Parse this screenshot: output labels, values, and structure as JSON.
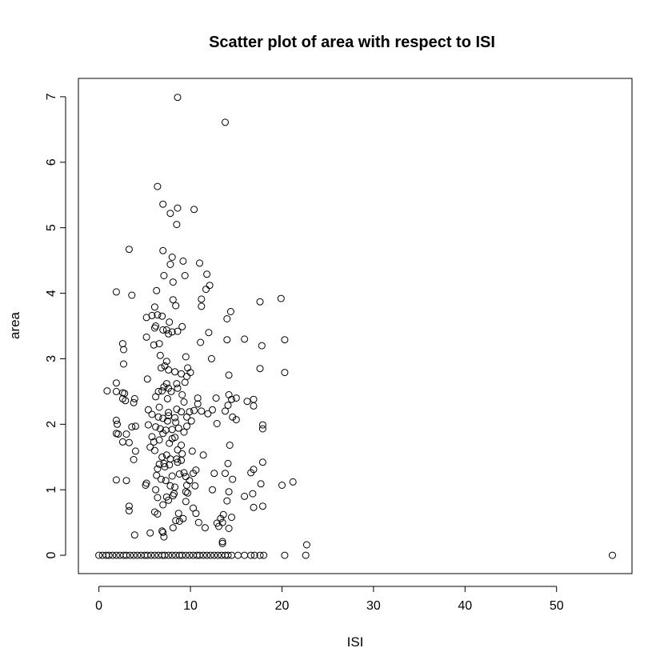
{
  "chart_data": {
    "type": "scatter",
    "title": "Scatter plot of area with respect to ISI",
    "xlabel": "ISI",
    "ylabel": "area",
    "xlim": [
      -2.24,
      58.24
    ],
    "ylim": [
      -0.28,
      7.28
    ],
    "xticks": [
      0,
      10,
      20,
      30,
      40,
      50
    ],
    "yticks": [
      0,
      1,
      2,
      3,
      4,
      5,
      6,
      7
    ],
    "grid": false,
    "series": [
      {
        "marker": "open-circle",
        "points": [
          [
            8.6,
            6.99
          ],
          [
            13.8,
            6.61
          ],
          [
            6.4,
            5.63
          ],
          [
            7.0,
            5.36
          ],
          [
            7.8,
            5.22
          ],
          [
            8.6,
            5.3
          ],
          [
            10.4,
            5.28
          ],
          [
            8.5,
            5.05
          ],
          [
            3.3,
            4.67
          ],
          [
            7.0,
            4.65
          ],
          [
            8.0,
            4.55
          ],
          [
            11.0,
            4.46
          ],
          [
            7.8,
            4.44
          ],
          [
            9.2,
            4.49
          ],
          [
            7.1,
            4.27
          ],
          [
            9.4,
            4.27
          ],
          [
            8.1,
            4.17
          ],
          [
            11.8,
            4.29
          ],
          [
            12.1,
            4.12
          ],
          [
            11.7,
            4.06
          ],
          [
            1.9,
            4.02
          ],
          [
            6.3,
            4.04
          ],
          [
            3.6,
            3.97
          ],
          [
            11.2,
            3.91
          ],
          [
            8.1,
            3.9
          ],
          [
            14.4,
            3.72
          ],
          [
            17.6,
            3.87
          ],
          [
            19.9,
            3.92
          ],
          [
            6.1,
            3.79
          ],
          [
            8.4,
            3.81
          ],
          [
            11.2,
            3.8
          ],
          [
            5.8,
            3.66
          ],
          [
            6.4,
            3.67
          ],
          [
            6.9,
            3.65
          ],
          [
            5.2,
            3.63
          ],
          [
            14.0,
            3.61
          ],
          [
            6.2,
            3.5
          ],
          [
            7.7,
            3.56
          ],
          [
            9.1,
            3.49
          ],
          [
            6.1,
            3.47
          ],
          [
            7.0,
            3.44
          ],
          [
            7.4,
            3.44
          ],
          [
            7.6,
            3.38
          ],
          [
            8.0,
            3.41
          ],
          [
            8.6,
            3.42
          ],
          [
            5.2,
            3.33
          ],
          [
            11.1,
            3.25
          ],
          [
            12.0,
            3.4
          ],
          [
            14.0,
            3.29
          ],
          [
            15.9,
            3.3
          ],
          [
            20.3,
            3.29
          ],
          [
            2.6,
            3.23
          ],
          [
            6.0,
            3.21
          ],
          [
            6.6,
            3.23
          ],
          [
            17.8,
            3.2
          ],
          [
            2.7,
            3.14
          ],
          [
            6.7,
            3.05
          ],
          [
            9.5,
            3.03
          ],
          [
            12.3,
            3.0
          ],
          [
            7.4,
            2.96
          ],
          [
            2.7,
            2.92
          ],
          [
            7.2,
            2.89
          ],
          [
            7.6,
            2.83
          ],
          [
            6.8,
            2.86
          ],
          [
            9.7,
            2.86
          ],
          [
            17.6,
            2.85
          ],
          [
            8.3,
            2.8
          ],
          [
            9.0,
            2.77
          ],
          [
            10.0,
            2.79
          ],
          [
            20.3,
            2.79
          ],
          [
            9.6,
            2.73
          ],
          [
            14.2,
            2.75
          ],
          [
            5.3,
            2.69
          ],
          [
            1.9,
            2.63
          ],
          [
            7.4,
            2.62
          ],
          [
            8.5,
            2.62
          ],
          [
            9.4,
            2.64
          ],
          [
            7.1,
            2.57
          ],
          [
            6.9,
            2.51
          ],
          [
            7.6,
            2.55
          ],
          [
            8.6,
            2.55
          ],
          [
            7.9,
            2.5
          ],
          [
            0.9,
            2.51
          ],
          [
            1.9,
            2.5
          ],
          [
            2.6,
            2.48
          ],
          [
            2.8,
            2.47
          ],
          [
            6.5,
            2.5
          ],
          [
            9.1,
            2.45
          ],
          [
            2.6,
            2.39
          ],
          [
            3.9,
            2.39
          ],
          [
            6.2,
            2.42
          ],
          [
            10.8,
            2.4
          ],
          [
            12.8,
            2.4
          ],
          [
            14.2,
            2.45
          ],
          [
            14.5,
            2.38
          ],
          [
            15.0,
            2.4
          ],
          [
            7.5,
            2.39
          ],
          [
            16.9,
            2.38
          ],
          [
            2.9,
            2.36
          ],
          [
            3.8,
            2.33
          ],
          [
            9.3,
            2.34
          ],
          [
            10.8,
            2.31
          ],
          [
            16.2,
            2.35
          ],
          [
            14.1,
            2.29
          ],
          [
            16.9,
            2.28
          ],
          [
            5.4,
            2.22
          ],
          [
            6.6,
            2.26
          ],
          [
            8.5,
            2.23
          ],
          [
            11.2,
            2.2
          ],
          [
            12.4,
            2.22
          ],
          [
            13.8,
            2.2
          ],
          [
            7.6,
            2.18
          ],
          [
            9.0,
            2.19
          ],
          [
            9.9,
            2.19
          ],
          [
            10.4,
            2.21
          ],
          [
            5.8,
            2.15
          ],
          [
            6.5,
            2.11
          ],
          [
            7.6,
            2.13
          ],
          [
            8.3,
            2.1
          ],
          [
            7.0,
            2.09
          ],
          [
            9.6,
            2.11
          ],
          [
            11.9,
            2.16
          ],
          [
            14.6,
            2.11
          ],
          [
            1.9,
            2.06
          ],
          [
            5.4,
            1.99
          ],
          [
            7.5,
            2.05
          ],
          [
            8.4,
            2.03
          ],
          [
            10.1,
            2.05
          ],
          [
            12.9,
            2.01
          ],
          [
            15.0,
            2.07
          ],
          [
            17.9,
            1.99
          ],
          [
            2.0,
            2.0
          ],
          [
            3.6,
            1.96
          ],
          [
            4.0,
            1.97
          ],
          [
            6.2,
            1.96
          ],
          [
            6.7,
            1.93
          ],
          [
            8.0,
            1.92
          ],
          [
            8.7,
            1.94
          ],
          [
            9.6,
            1.97
          ],
          [
            7.3,
            1.91
          ],
          [
            17.9,
            1.93
          ],
          [
            1.9,
            1.86
          ],
          [
            2.1,
            1.85
          ],
          [
            3.0,
            1.85
          ],
          [
            5.8,
            1.81
          ],
          [
            7.0,
            1.86
          ],
          [
            8.3,
            1.8
          ],
          [
            9.3,
            1.88
          ],
          [
            8.0,
            1.78
          ],
          [
            6.6,
            1.76
          ],
          [
            6.0,
            1.73
          ],
          [
            2.6,
            1.73
          ],
          [
            3.3,
            1.72
          ],
          [
            7.7,
            1.71
          ],
          [
            9.0,
            1.68
          ],
          [
            14.3,
            1.68
          ],
          [
            5.6,
            1.65
          ],
          [
            6.1,
            1.6
          ],
          [
            4.0,
            1.59
          ],
          [
            8.6,
            1.61
          ],
          [
            10.2,
            1.59
          ],
          [
            7.4,
            1.53
          ],
          [
            9.1,
            1.55
          ],
          [
            11.4,
            1.53
          ],
          [
            6.9,
            1.5
          ],
          [
            7.8,
            1.47
          ],
          [
            8.5,
            1.47
          ],
          [
            9.0,
            1.45
          ],
          [
            3.8,
            1.46
          ],
          [
            6.6,
            1.39
          ],
          [
            7.1,
            1.4
          ],
          [
            7.7,
            1.38
          ],
          [
            8.6,
            1.42
          ],
          [
            14.1,
            1.4
          ],
          [
            17.9,
            1.42
          ],
          [
            6.4,
            1.32
          ],
          [
            7.2,
            1.35
          ],
          [
            10.3,
            1.25
          ],
          [
            13.8,
            1.25
          ],
          [
            16.9,
            1.31
          ],
          [
            9.3,
            1.26
          ],
          [
            10.6,
            1.3
          ],
          [
            9.5,
            1.2
          ],
          [
            16.6,
            1.26
          ],
          [
            12.6,
            1.25
          ],
          [
            6.3,
            1.22
          ],
          [
            8.0,
            1.21
          ],
          [
            8.8,
            1.24
          ],
          [
            6.8,
            1.16
          ],
          [
            7.3,
            1.14
          ],
          [
            9.9,
            1.14
          ],
          [
            14.6,
            1.16
          ],
          [
            21.2,
            1.12
          ],
          [
            1.9,
            1.15
          ],
          [
            3.0,
            1.14
          ],
          [
            5.2,
            1.1
          ],
          [
            5.1,
            1.07
          ],
          [
            7.8,
            1.06
          ],
          [
            8.3,
            1.04
          ],
          [
            9.6,
            1.07
          ],
          [
            10.5,
            1.06
          ],
          [
            17.7,
            1.09
          ],
          [
            20.0,
            1.07
          ],
          [
            6.2,
            1.0
          ],
          [
            9.5,
            0.97
          ],
          [
            9.7,
            0.95
          ],
          [
            12.4,
            1.0
          ],
          [
            14.2,
            0.97
          ],
          [
            6.4,
            0.88
          ],
          [
            7.4,
            0.89
          ],
          [
            8.1,
            0.91
          ],
          [
            8.2,
            0.94
          ],
          [
            16.8,
            0.94
          ],
          [
            7.6,
            0.84
          ],
          [
            9.5,
            0.82
          ],
          [
            14.0,
            0.83
          ],
          [
            15.9,
            0.9
          ],
          [
            3.3,
            0.75
          ],
          [
            10.3,
            0.72
          ],
          [
            16.9,
            0.73
          ],
          [
            17.9,
            0.75
          ],
          [
            3.3,
            0.68
          ],
          [
            7.0,
            0.77
          ],
          [
            6.1,
            0.66
          ],
          [
            6.4,
            0.63
          ],
          [
            8.7,
            0.64
          ],
          [
            10.6,
            0.64
          ],
          [
            13.6,
            0.62
          ],
          [
            13.3,
            0.56
          ],
          [
            14.5,
            0.58
          ],
          [
            9.2,
            0.56
          ],
          [
            8.4,
            0.53
          ],
          [
            8.8,
            0.52
          ],
          [
            10.9,
            0.5
          ],
          [
            12.9,
            0.49
          ],
          [
            13.5,
            0.5
          ],
          [
            13.1,
            0.44
          ],
          [
            8.1,
            0.42
          ],
          [
            11.6,
            0.42
          ],
          [
            14.2,
            0.41
          ],
          [
            5.6,
            0.34
          ],
          [
            6.9,
            0.37
          ],
          [
            7.0,
            0.35
          ],
          [
            3.9,
            0.31
          ],
          [
            7.1,
            0.28
          ],
          [
            13.5,
            0.21
          ],
          [
            13.5,
            0.18
          ],
          [
            22.7,
            0.16
          ],
          [
            0.0,
            0.0
          ],
          [
            0.4,
            0.0
          ],
          [
            0.8,
            0.0
          ],
          [
            1.1,
            0.0
          ],
          [
            1.5,
            0.0
          ],
          [
            1.9,
            0.0
          ],
          [
            2.3,
            0.0
          ],
          [
            2.7,
            0.0
          ],
          [
            3.0,
            0.0
          ],
          [
            3.4,
            0.0
          ],
          [
            3.8,
            0.0
          ],
          [
            4.2,
            0.0
          ],
          [
            4.6,
            0.0
          ],
          [
            5.0,
            0.0
          ],
          [
            5.3,
            0.0
          ],
          [
            5.7,
            0.0
          ],
          [
            6.1,
            0.0
          ],
          [
            6.5,
            0.0
          ],
          [
            6.9,
            0.0
          ],
          [
            7.2,
            0.0
          ],
          [
            7.6,
            0.0
          ],
          [
            8.0,
            0.0
          ],
          [
            8.4,
            0.0
          ],
          [
            8.8,
            0.0
          ],
          [
            9.1,
            0.0
          ],
          [
            9.5,
            0.0
          ],
          [
            9.9,
            0.0
          ],
          [
            10.3,
            0.0
          ],
          [
            10.7,
            0.0
          ],
          [
            11.0,
            0.0
          ],
          [
            11.4,
            0.0
          ],
          [
            11.8,
            0.0
          ],
          [
            12.2,
            0.0
          ],
          [
            12.6,
            0.0
          ],
          [
            13.0,
            0.0
          ],
          [
            13.4,
            0.0
          ],
          [
            13.8,
            0.0
          ],
          [
            14.1,
            0.0
          ],
          [
            14.5,
            0.0
          ],
          [
            15.2,
            0.0
          ],
          [
            15.9,
            0.0
          ],
          [
            16.6,
            0.0
          ],
          [
            17.0,
            0.0
          ],
          [
            17.6,
            0.0
          ],
          [
            18.0,
            0.0
          ],
          [
            20.3,
            0.0
          ],
          [
            22.6,
            0.0
          ],
          [
            56.1,
            0.0
          ]
        ]
      }
    ]
  }
}
